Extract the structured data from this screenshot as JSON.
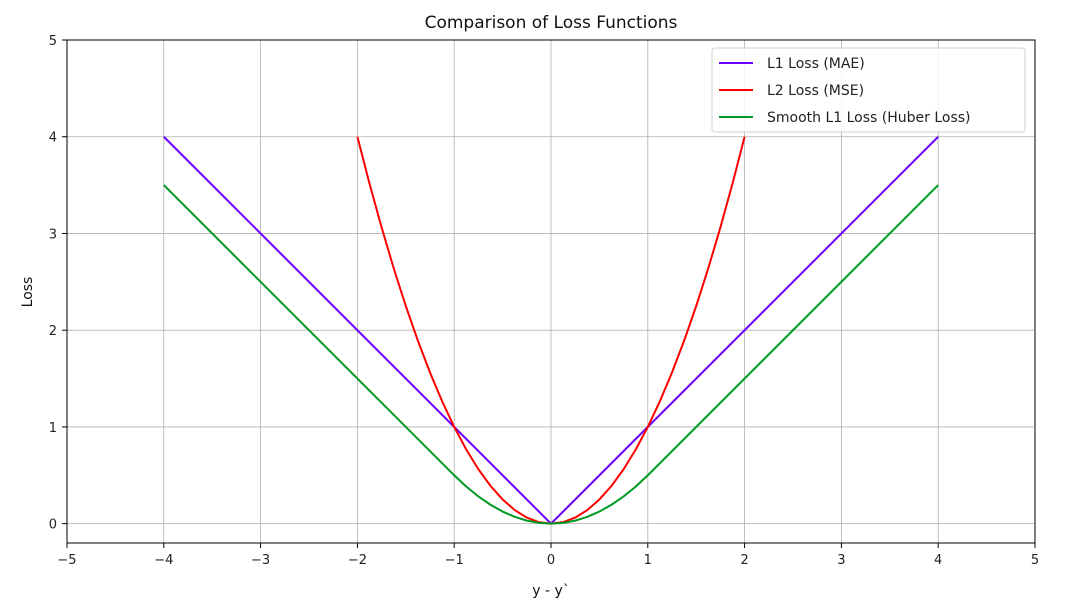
{
  "chart_data": {
    "type": "line",
    "title": "Comparison of Loss Functions",
    "xlabel": "y - y`",
    "ylabel": "Loss",
    "xlim": [
      -5,
      5
    ],
    "ylim": [
      -0.2,
      5
    ],
    "xticks": [
      "−5",
      "−4",
      "−3",
      "−2",
      "−1",
      "0",
      "1",
      "2",
      "3",
      "4",
      "5"
    ],
    "xtick_values": [
      -5,
      -4,
      -3,
      -2,
      -1,
      0,
      1,
      2,
      3,
      4,
      5
    ],
    "yticks": [
      "0",
      "1",
      "2",
      "3",
      "4",
      "5"
    ],
    "ytick_values": [
      0,
      1,
      2,
      3,
      4,
      5
    ],
    "grid": true,
    "legend_position": "top-right",
    "series": [
      {
        "name": "L1 Loss (MAE)",
        "color": "#6a00ff",
        "x": [
          -4,
          0,
          4
        ],
        "y": [
          4,
          0,
          4
        ]
      },
      {
        "name": "L2 Loss (MSE)",
        "color": "#ff0000",
        "x": [
          -2,
          -1.875,
          -1.75,
          -1.625,
          -1.5,
          -1.375,
          -1.25,
          -1.125,
          -1,
          -0.875,
          -0.75,
          -0.625,
          -0.5,
          -0.375,
          -0.25,
          -0.125,
          0,
          0.125,
          0.25,
          0.375,
          0.5,
          0.625,
          0.75,
          0.875,
          1,
          1.125,
          1.25,
          1.375,
          1.5,
          1.625,
          1.75,
          1.875,
          2
        ],
        "y": [
          4,
          3.515625,
          3.0625,
          2.640625,
          2.25,
          1.890625,
          1.5625,
          1.265625,
          1,
          0.765625,
          0.5625,
          0.390625,
          0.25,
          0.140625,
          0.0625,
          0.015625,
          0,
          0.015625,
          0.0625,
          0.140625,
          0.25,
          0.390625,
          0.5625,
          0.765625,
          1,
          1.265625,
          1.5625,
          1.890625,
          2.25,
          2.640625,
          3.0625,
          3.515625,
          4
        ]
      },
      {
        "name": "Smooth L1 Loss (Huber Loss)",
        "color": "#009a22",
        "x": [
          -4,
          -1,
          -0.875,
          -0.75,
          -0.625,
          -0.5,
          -0.375,
          -0.25,
          -0.125,
          0,
          0.125,
          0.25,
          0.375,
          0.5,
          0.625,
          0.75,
          0.875,
          1,
          4
        ],
        "y": [
          3.5,
          0.5,
          0.3828125,
          0.28125,
          0.1953125,
          0.125,
          0.0703125,
          0.03125,
          0.0078125,
          0,
          0.0078125,
          0.03125,
          0.0703125,
          0.125,
          0.1953125,
          0.28125,
          0.3828125,
          0.5,
          3.5
        ]
      }
    ]
  }
}
